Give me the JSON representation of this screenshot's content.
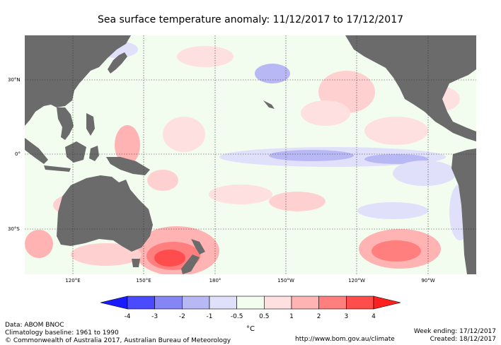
{
  "title": "Sea surface temperature anomaly: 11/12/2017 to 17/12/2017",
  "map": {
    "lat_labels": [
      {
        "text": "30°N",
        "lat": 30
      },
      {
        "text": "0°",
        "lat": 0
      },
      {
        "text": "30°S",
        "lat": -30
      }
    ],
    "lon_labels": [
      {
        "text": "120°E",
        "lon": 120
      },
      {
        "text": "150°E",
        "lon": 150
      },
      {
        "text": "180°",
        "lon": 180
      },
      {
        "text": "150°W",
        "lon": 210
      },
      {
        "text": "120°W",
        "lon": 240
      },
      {
        "text": "90°W",
        "lon": 270
      }
    ],
    "colors": {
      "land": "#6b6b6b",
      "neutral": "#f2fdf0",
      "grid": "#333333"
    }
  },
  "legend": {
    "unit": "°C",
    "ticks": [
      "-4",
      "-3",
      "-2",
      "-1",
      "-0.5",
      "0.5",
      "1",
      "2",
      "3",
      "4"
    ],
    "colors": [
      "#1a1aff",
      "#4a4aff",
      "#8585f5",
      "#b8b8f5",
      "#e0e0fb",
      "#f2fdf0",
      "#ffe0e0",
      "#ffb3b3",
      "#ff7f7f",
      "#ff4d4d",
      "#ff2020"
    ]
  },
  "footer": {
    "line1": "Data: ABOM BNOC",
    "line2": "Climatology baseline: 1961 to 1990",
    "line3": "© Commonwealth of Australia 2017, Australian Bureau of Meteorology",
    "url": "http://www.bom.gov.au/climate",
    "week_ending": "Week ending: 17/12/2017",
    "created": "Created: 18/12/2017"
  }
}
